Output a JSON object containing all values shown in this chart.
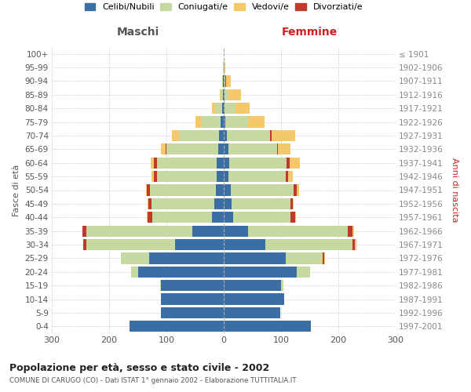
{
  "age_groups": [
    "0-4",
    "5-9",
    "10-14",
    "15-19",
    "20-24",
    "25-29",
    "30-34",
    "35-39",
    "40-44",
    "45-49",
    "50-54",
    "55-59",
    "60-64",
    "65-69",
    "70-74",
    "75-79",
    "80-84",
    "85-89",
    "90-94",
    "95-99",
    "100+"
  ],
  "birth_years": [
    "1997-2001",
    "1992-1996",
    "1987-1991",
    "1982-1986",
    "1977-1981",
    "1972-1976",
    "1967-1971",
    "1962-1966",
    "1957-1961",
    "1952-1956",
    "1947-1951",
    "1942-1946",
    "1937-1941",
    "1932-1936",
    "1927-1931",
    "1922-1926",
    "1917-1921",
    "1912-1916",
    "1907-1911",
    "1902-1906",
    "≤ 1901"
  ],
  "maschi": {
    "celibi": [
      165,
      110,
      110,
      110,
      150,
      130,
      85,
      55,
      20,
      16,
      14,
      12,
      12,
      10,
      8,
      5,
      3,
      1,
      1,
      0,
      0
    ],
    "coniugati": [
      0,
      0,
      0,
      1,
      12,
      50,
      155,
      185,
      105,
      110,
      115,
      105,
      105,
      90,
      70,
      35,
      12,
      4,
      2,
      1,
      0
    ],
    "vedovi": [
      0,
      0,
      0,
      0,
      0,
      0,
      0,
      1,
      1,
      2,
      2,
      4,
      6,
      8,
      12,
      10,
      5,
      2,
      0,
      0,
      0
    ],
    "divorziati": [
      0,
      0,
      0,
      0,
      0,
      0,
      5,
      6,
      8,
      5,
      5,
      5,
      5,
      2,
      0,
      0,
      0,
      0,
      0,
      0,
      0
    ]
  },
  "femmine": {
    "nubili": [
      152,
      98,
      105,
      100,
      128,
      108,
      72,
      42,
      16,
      14,
      12,
      8,
      10,
      8,
      6,
      3,
      2,
      1,
      1,
      0,
      0
    ],
    "coniugate": [
      0,
      0,
      0,
      4,
      22,
      65,
      152,
      175,
      100,
      102,
      110,
      100,
      100,
      85,
      75,
      40,
      18,
      7,
      2,
      1,
      0
    ],
    "vedove": [
      0,
      0,
      0,
      0,
      0,
      2,
      2,
      2,
      2,
      2,
      4,
      8,
      18,
      22,
      42,
      28,
      25,
      22,
      9,
      2,
      0
    ],
    "divorziate": [
      0,
      0,
      0,
      0,
      0,
      2,
      5,
      8,
      8,
      4,
      5,
      5,
      5,
      2,
      2,
      0,
      0,
      0,
      1,
      0,
      0
    ]
  },
  "colors": {
    "celibi": "#3a6ea5",
    "coniugati": "#c5d9a0",
    "vedovi": "#f5c96a",
    "divorziati": "#c0392b"
  },
  "legend_labels": [
    "Celibi/Nubili",
    "Coniugati/e",
    "Vedovi/e",
    "Divorziati/e"
  ],
  "title": "Popolazione per età, sesso e stato civile - 2002",
  "subtitle": "COMUNE DI CARUGO (CO) - Dati ISTAT 1° gennaio 2002 - Elaborazione TUTTITALIA.IT",
  "label_maschi": "Maschi",
  "label_femmine": "Femmine",
  "ylabel_left": "Fasce di età",
  "ylabel_right": "Anni di nascita",
  "xlim": 300,
  "bg_color": "#ffffff",
  "grid_color": "#cccccc",
  "maschi_label_color": "#555555",
  "femmine_label_color": "#cc2222"
}
